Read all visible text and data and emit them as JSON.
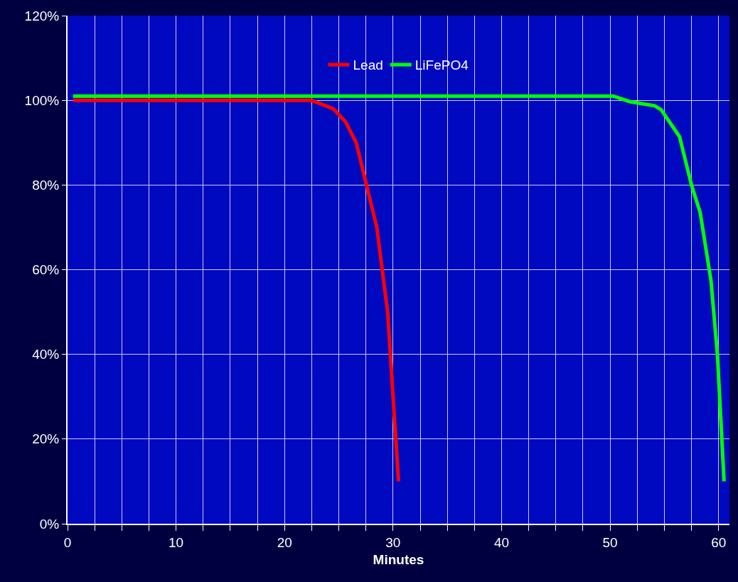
{
  "chart_data": {
    "type": "line",
    "xlabel": "Minutes",
    "series": [
      {
        "name": "Lead",
        "color": "#ff0000",
        "x": [
          0.5,
          22.5,
          24.5,
          25.6,
          26.6,
          28.5,
          29.5,
          30.5
        ],
        "values": [
          100,
          100,
          98,
          95,
          90,
          70,
          50,
          10
        ]
      },
      {
        "name": "LiFePO4",
        "color": "#00ff00",
        "x": [
          0.5,
          50.3,
          51.8,
          54.1,
          54.7,
          56.4,
          57.5,
          58.3,
          59.3,
          59.9,
          60.5
        ],
        "values": [
          101,
          101,
          99.7,
          98.7,
          97.8,
          91.4,
          80,
          73.5,
          57.4,
          39.5,
          10
        ]
      }
    ],
    "xlim": [
      0,
      61
    ],
    "xticks": [
      0,
      {
        "value": 2.5,
        "label": null
      },
      {
        "value": 5,
        "label": null
      },
      {
        "value": 7.5,
        "label": null
      },
      10,
      {
        "value": 12.5,
        "label": null
      },
      {
        "value": 15,
        "label": null
      },
      {
        "value": 17.5,
        "label": null
      },
      20,
      {
        "value": 22.5,
        "label": null
      },
      {
        "value": 25,
        "label": null
      },
      {
        "value": 27.5,
        "label": null
      },
      30,
      {
        "value": 32.5,
        "label": null
      },
      {
        "value": 35,
        "label": null
      },
      {
        "value": 37.5,
        "label": null
      },
      40,
      {
        "value": 42.5,
        "label": null
      },
      {
        "value": 45,
        "label": null
      },
      {
        "value": 47.5,
        "label": null
      },
      50,
      {
        "value": 52.5,
        "label": null
      },
      {
        "value": 55,
        "label": null
      },
      {
        "value": 57.5,
        "label": null
      },
      60
    ],
    "ylim": [
      0,
      120
    ],
    "yticks": [
      {
        "value": 0,
        "label": "0%"
      },
      {
        "value": 20,
        "label": "20%"
      },
      {
        "value": 40,
        "label": "40%"
      },
      {
        "value": 60,
        "label": "60%"
      },
      {
        "value": 80,
        "label": "80%"
      },
      {
        "value": 100,
        "label": "100%"
      },
      {
        "value": 120,
        "label": "120%"
      }
    ],
    "grid": true,
    "legend": "top",
    "marker": "none",
    "line_style": "solid"
  }
}
